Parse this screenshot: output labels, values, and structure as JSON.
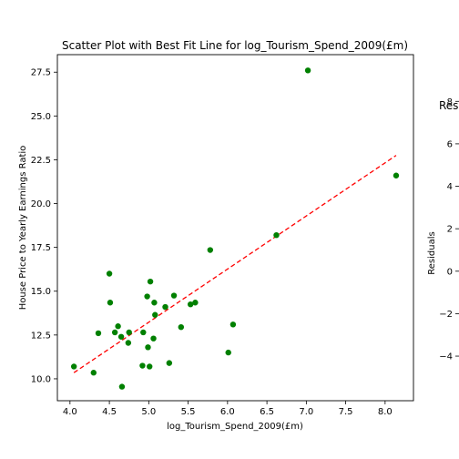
{
  "chart_data": [
    {
      "type": "scatter",
      "title": "Scatter Plot with Best Fit Line for log_Tourism_Spend_2009(£m)",
      "xlabel": "log_Tourism_Spend_2009(£m)",
      "ylabel": "House Price to Yearly Earnings Ratio",
      "xlim": [
        3.84,
        8.36
      ],
      "ylim": [
        8.75,
        28.5
      ],
      "xticks": [
        4.0,
        4.5,
        5.0,
        5.5,
        6.0,
        6.5,
        7.0,
        7.5,
        8.0
      ],
      "xtick_labels": [
        "4.0",
        "4.5",
        "5.0",
        "5.5",
        "6.0",
        "6.5",
        "7.0",
        "7.5",
        "8.0"
      ],
      "yticks": [
        10.0,
        12.5,
        15.0,
        17.5,
        20.0,
        22.5,
        25.0,
        27.5
      ],
      "ytick_labels": [
        "10.0",
        "12.5",
        "15.0",
        "17.5",
        "20.0",
        "22.5",
        "25.0",
        "27.5"
      ],
      "grid": false,
      "colors": {
        "points": "#008000",
        "fit_line": "#ff0000"
      },
      "series": [
        {
          "kind": "points",
          "x": [
            4.05,
            4.3,
            4.36,
            4.5,
            4.51,
            4.57,
            4.61,
            4.65,
            4.66,
            4.74,
            4.75,
            4.92,
            4.93,
            4.98,
            4.99,
            5.01,
            5.02,
            5.06,
            5.07,
            5.08,
            5.21,
            5.26,
            5.32,
            5.41,
            5.53,
            5.59,
            5.78,
            6.01,
            6.07,
            6.62,
            7.02,
            8.14
          ],
          "y": [
            10.7,
            10.35,
            12.6,
            16.0,
            14.35,
            12.65,
            13.0,
            12.4,
            9.55,
            12.05,
            12.65,
            10.75,
            12.65,
            14.7,
            11.8,
            10.7,
            15.55,
            12.3,
            14.35,
            13.65,
            14.1,
            10.9,
            14.75,
            12.95,
            14.25,
            14.35,
            17.35,
            11.5,
            13.1,
            18.2,
            27.6,
            21.6
          ]
        },
        {
          "kind": "fit-line",
          "x": [
            4.05,
            8.14
          ],
          "y": [
            10.35,
            22.75
          ]
        }
      ]
    },
    {
      "type": "scatter",
      "title": "Resi",
      "xlabel": "",
      "ylabel": "Residuals",
      "ylim": [
        -6.1,
        10.2
      ],
      "yticks": [
        8,
        6,
        4,
        2,
        0,
        -2,
        -4
      ],
      "ytick_labels": [
        "8",
        "6",
        "4",
        "2",
        "0",
        "−2",
        "−4"
      ],
      "grid": false
    }
  ]
}
